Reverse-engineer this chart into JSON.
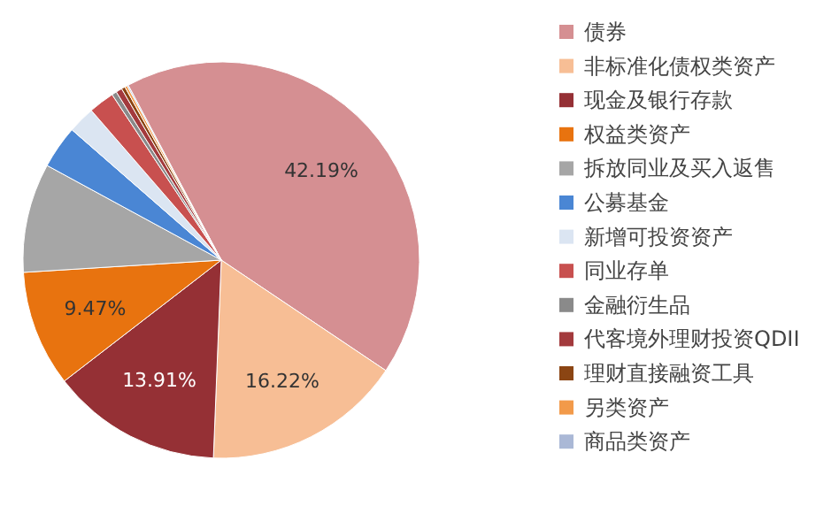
{
  "chart_data": {
    "type": "pie",
    "legend": "right",
    "categories": [
      "债券",
      "非标准化债权类资产",
      "现金及银行存款",
      "权益类资产",
      "拆放同业及买入返售",
      "公募基金",
      "新增可投资资产",
      "同业存单",
      "金融衍生品",
      "代客境外理财投资QDII",
      "理财直接融资工具",
      "另类资产",
      "商品类资产"
    ],
    "values": [
      42.19,
      16.22,
      13.91,
      9.47,
      8.91,
      3.5,
      2.2,
      2.1,
      0.4,
      0.5,
      0.3,
      0.2,
      0.1
    ],
    "value_labels": [
      "42.19%",
      "16.22%",
      "13.91%",
      "9.47%",
      null,
      null,
      null,
      null,
      null,
      null,
      null,
      null,
      null
    ],
    "colors": [
      "#d58f92",
      "#f7be95",
      "#953035",
      "#e8730f",
      "#a6a6a6",
      "#4a86d4",
      "#dbe5f2",
      "#c8504f",
      "#8a8a8a",
      "#a33a3d",
      "#8b4513",
      "#f29a4a",
      "#aab8d6"
    ]
  }
}
